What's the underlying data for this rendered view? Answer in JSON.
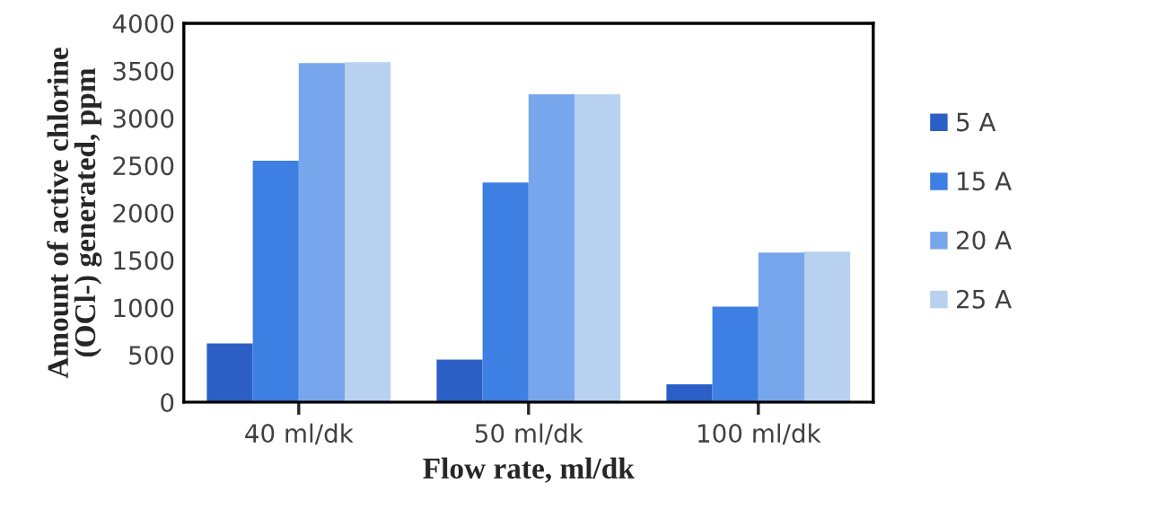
{
  "chart_data": {
    "type": "bar",
    "xlabel": "Flow rate, ml/dk",
    "ylabel": "Amount of active chlorine\n(OCl-) generated, ppm",
    "categories": [
      "40 ml/dk",
      "50 ml/dk",
      "100 ml/dk"
    ],
    "series": [
      {
        "name": "5 A",
        "color": "#2b5fc6",
        "values": [
          620,
          450,
          190
        ]
      },
      {
        "name": "15 A",
        "color": "#3d7fe3",
        "values": [
          2550,
          2320,
          1010
        ]
      },
      {
        "name": "20 A",
        "color": "#78a6ec",
        "values": [
          3580,
          3250,
          1580
        ]
      },
      {
        "name": "25 A",
        "color": "#b8d1f1",
        "values": [
          3590,
          3250,
          1590
        ]
      }
    ],
    "ylim": [
      0,
      4000
    ],
    "yticks": [
      0,
      500,
      1000,
      1500,
      2000,
      2500,
      3000,
      3500,
      4000
    ],
    "grid": false,
    "legend": "right"
  }
}
